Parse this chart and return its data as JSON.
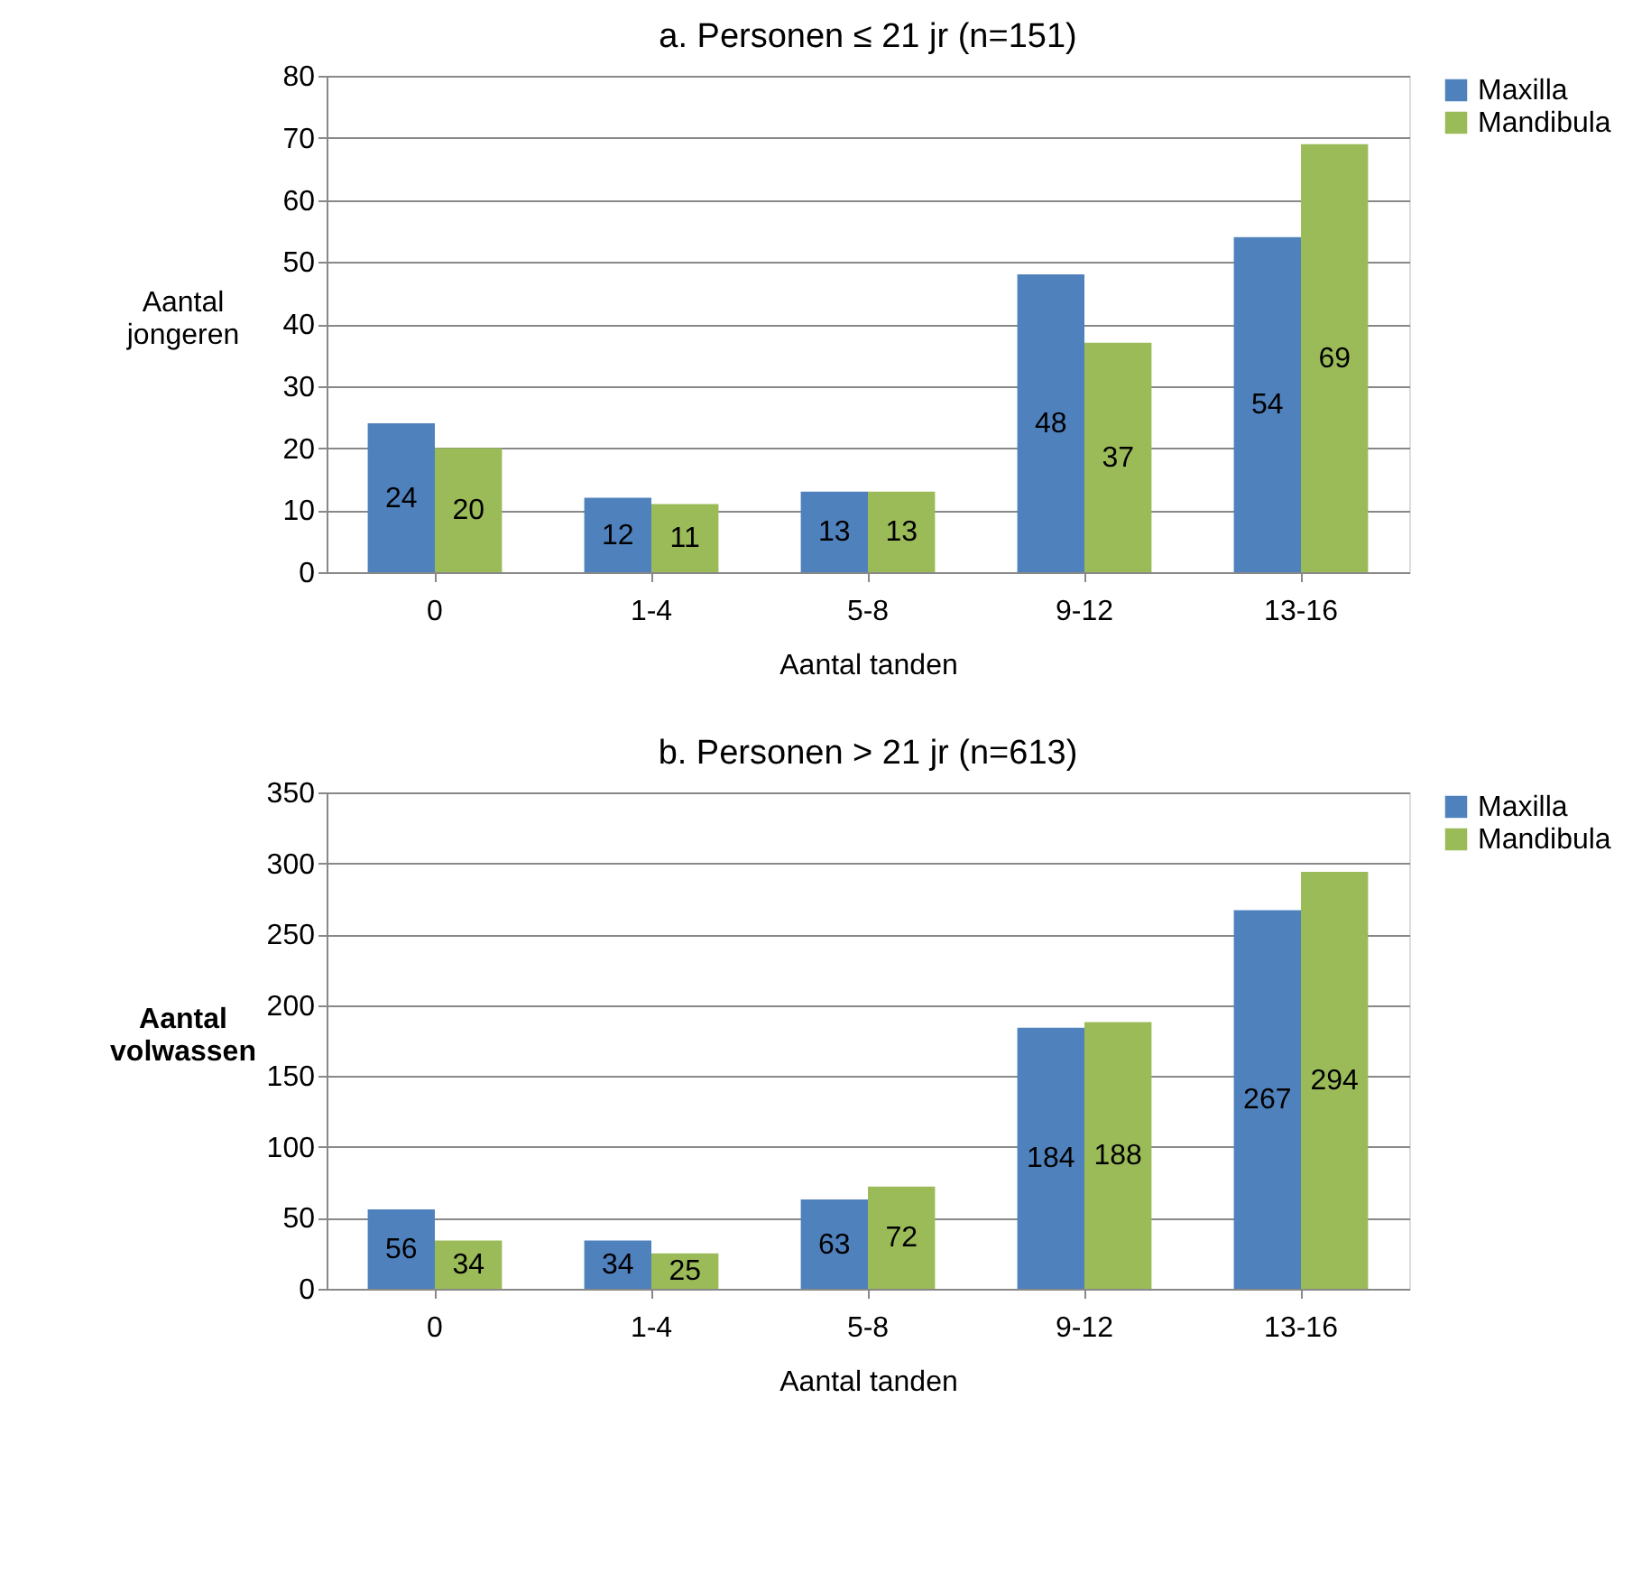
{
  "chart_data": [
    {
      "type": "bar",
      "title": "a. Personen ≤ 21 jr (n=151)",
      "xlabel": "Aantal tanden",
      "ylabel": "Aantal jongeren",
      "categories": [
        "0",
        "1-4",
        "5-8",
        "9-12",
        "13-16"
      ],
      "series": [
        {
          "name": "Maxilla",
          "color": "#4f81bd",
          "values": [
            24,
            12,
            13,
            48,
            54
          ]
        },
        {
          "name": "Mandibula",
          "color": "#9bbb59",
          "values": [
            20,
            11,
            13,
            37,
            69
          ]
        }
      ],
      "ylim": [
        0,
        80
      ],
      "yticks": [
        0,
        10,
        20,
        30,
        40,
        50,
        60,
        70,
        80
      ],
      "grid": "y",
      "legend": "right",
      "data_labels": true
    },
    {
      "type": "bar",
      "title": "b. Personen > 21 jr (n=613)",
      "xlabel": "Aantal tanden",
      "ylabel": "Aantal volwassen",
      "categories": [
        "0",
        "1-4",
        "5-8",
        "9-12",
        "13-16"
      ],
      "series": [
        {
          "name": "Maxilla",
          "color": "#4f81bd",
          "values": [
            56,
            34,
            63,
            184,
            267
          ]
        },
        {
          "name": "Mandibula",
          "color": "#9bbb59",
          "values": [
            34,
            25,
            72,
            188,
            294
          ]
        }
      ],
      "ylim": [
        0,
        350
      ],
      "yticks": [
        0,
        50,
        100,
        150,
        200,
        250,
        300,
        350
      ],
      "grid": "y",
      "legend": "right",
      "data_labels": true
    }
  ]
}
